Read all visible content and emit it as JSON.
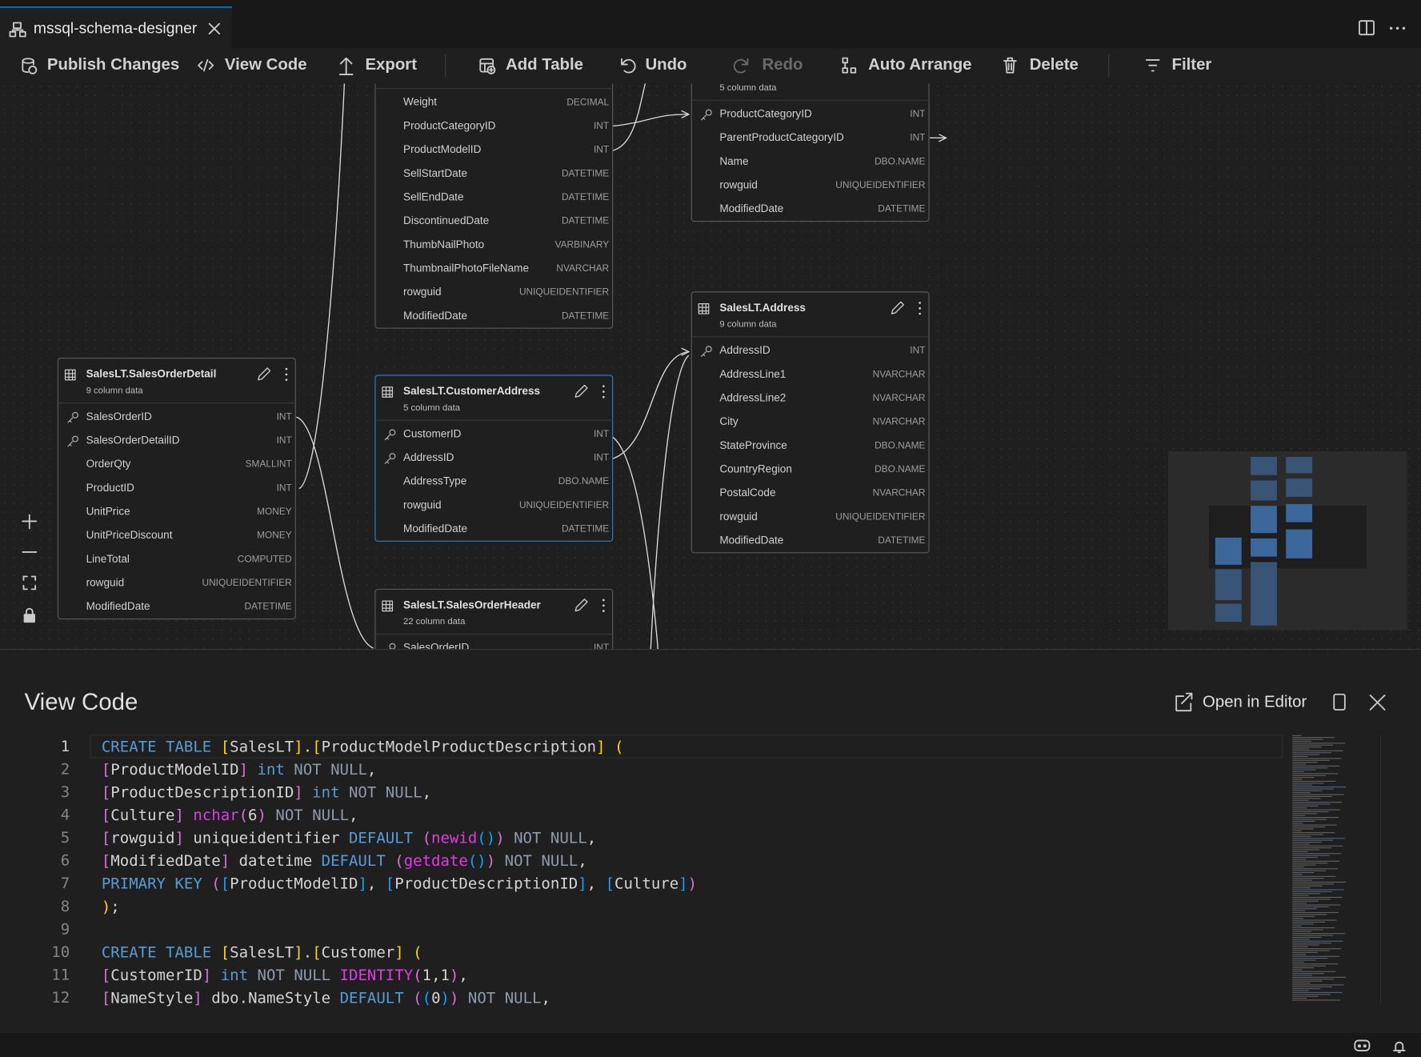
{
  "tab": {
    "title": "mssql-schema-designer"
  },
  "toolbar": [
    "Publish Changes",
    "View Code",
    "Export",
    "Add Table",
    "Undo",
    "Redo",
    "Auto Arrange",
    "Delete",
    "Filter"
  ],
  "tables": [
    {
      "columns": [
        {
          "name": "Weight",
          "type": "DECIMAL"
        },
        {
          "name": "ProductCategoryID",
          "type": "INT"
        },
        {
          "name": "ProductModelID",
          "type": "INT"
        },
        {
          "name": "SellStartDate",
          "type": "DATETIME"
        },
        {
          "name": "SellEndDate",
          "type": "DATETIME"
        },
        {
          "name": "DiscontinuedDate",
          "type": "DATETIME"
        },
        {
          "name": "ThumbNailPhoto",
          "type": "VARBINARY"
        },
        {
          "name": "ThumbnailPhotoFileName",
          "type": "NVARCHAR"
        },
        {
          "name": "rowguid",
          "type": "UNIQUEIDENTIFIER"
        },
        {
          "name": "ModifiedDate",
          "type": "DATETIME"
        }
      ]
    },
    {
      "subtitle": "5 column data",
      "columns": [
        {
          "name": "ProductCategoryID",
          "type": "INT",
          "key": true
        },
        {
          "name": "ParentProductCategoryID",
          "type": "INT"
        },
        {
          "name": "Name",
          "type": "DBO.NAME"
        },
        {
          "name": "rowguid",
          "type": "UNIQUEIDENTIFIER"
        },
        {
          "name": "ModifiedDate",
          "type": "DATETIME"
        }
      ]
    },
    {
      "name": "SalesLT.SalesOrderDetail",
      "subtitle": "9 column data",
      "columns": [
        {
          "name": "SalesOrderID",
          "type": "INT",
          "key": true
        },
        {
          "name": "SalesOrderDetailID",
          "type": "INT",
          "key": true
        },
        {
          "name": "OrderQty",
          "type": "SMALLINT"
        },
        {
          "name": "ProductID",
          "type": "INT"
        },
        {
          "name": "UnitPrice",
          "type": "MONEY"
        },
        {
          "name": "UnitPriceDiscount",
          "type": "MONEY"
        },
        {
          "name": "LineTotal",
          "type": "COMPUTED"
        },
        {
          "name": "rowguid",
          "type": "UNIQUEIDENTIFIER"
        },
        {
          "name": "ModifiedDate",
          "type": "DATETIME"
        }
      ]
    },
    {
      "name": "SalesLT.CustomerAddress",
      "subtitle": "5 column data",
      "selected": true,
      "columns": [
        {
          "name": "CustomerID",
          "type": "INT",
          "key": true
        },
        {
          "name": "AddressID",
          "type": "INT",
          "key": true
        },
        {
          "name": "AddressType",
          "type": "DBO.NAME"
        },
        {
          "name": "rowguid",
          "type": "UNIQUEIDENTIFIER"
        },
        {
          "name": "ModifiedDate",
          "type": "DATETIME"
        }
      ]
    },
    {
      "name": "SalesLT.SalesOrderHeader",
      "subtitle": "22 column data",
      "columns": [
        {
          "name": "SalesOrderID",
          "type": "INT",
          "key": true
        }
      ]
    },
    {
      "name": "SalesLT.Address",
      "subtitle": "9 column data",
      "columns": [
        {
          "name": "AddressID",
          "type": "INT",
          "key": true
        },
        {
          "name": "AddressLine1",
          "type": "NVARCHAR"
        },
        {
          "name": "AddressLine2",
          "type": "NVARCHAR"
        },
        {
          "name": "City",
          "type": "NVARCHAR"
        },
        {
          "name": "StateProvince",
          "type": "DBO.NAME"
        },
        {
          "name": "CountryRegion",
          "type": "DBO.NAME"
        },
        {
          "name": "PostalCode",
          "type": "NVARCHAR"
        },
        {
          "name": "rowguid",
          "type": "UNIQUEIDENTIFIER"
        },
        {
          "name": "ModifiedDate",
          "type": "DATETIME"
        }
      ]
    }
  ],
  "code_panel": {
    "title": "View Code",
    "open_in_editor": "Open in Editor",
    "lines": [
      {
        "number": 1,
        "text": "CREATE TABLE [SalesLT].[ProductModelProductDescription] ("
      },
      {
        "number": 2,
        "text": "[ProductModelID] int NOT NULL,"
      },
      {
        "number": 3,
        "text": "[ProductDescriptionID] int NOT NULL,"
      },
      {
        "number": 4,
        "text": "[Culture] nchar(6) NOT NULL,"
      },
      {
        "number": 5,
        "text": "[rowguid] uniqueidentifier DEFAULT (newid()) NOT NULL,"
      },
      {
        "number": 6,
        "text": "[ModifiedDate] datetime DEFAULT (getdate()) NOT NULL,"
      },
      {
        "number": 7,
        "text": "PRIMARY KEY ([ProductModelID], [ProductDescriptionID], [Culture])"
      },
      {
        "number": 8,
        "text": ");"
      },
      {
        "number": 9,
        "text": ""
      },
      {
        "number": 10,
        "text": "CREATE TABLE [SalesLT].[Customer] ("
      },
      {
        "number": 11,
        "text": "[CustomerID] int NOT NULL IDENTITY(1,1),"
      },
      {
        "number": 12,
        "text": "[NameStyle] dbo.NameStyle DEFAULT ((0)) NOT NULL,"
      }
    ]
  }
}
